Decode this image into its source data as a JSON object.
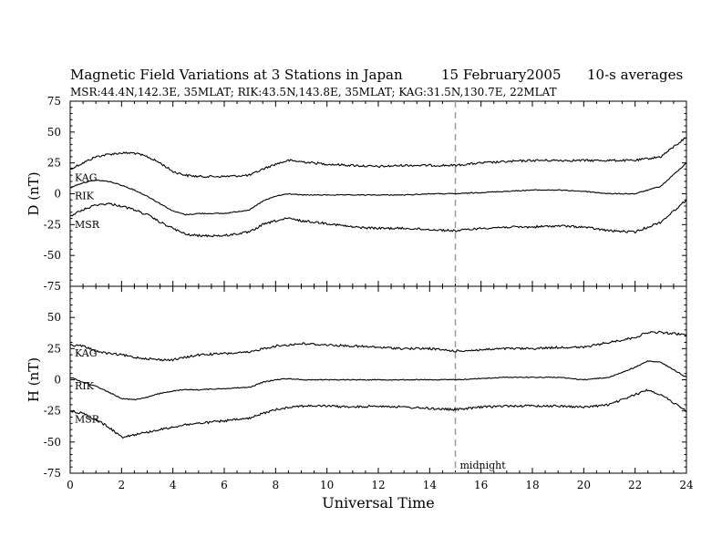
{
  "header": {
    "title": "Magnetic Field Variations at 3 Stations in Japan",
    "date": "15 February2005",
    "averaging": "10-s averages",
    "stations": "MSR:44.4N,142.3E, 35MLAT;   RIK:43.5N,143.8E, 35MLAT;   KAG:31.5N,130.7E, 22MLAT"
  },
  "chart_data": [
    {
      "type": "line",
      "panel": "D",
      "ylabel": "D (nT)",
      "xlabel": "Universal Time",
      "xlim": [
        0,
        24
      ],
      "ylim": [
        -75,
        75
      ],
      "yticks": [
        75,
        50,
        25,
        0,
        -25,
        -50,
        -75
      ],
      "xticks": [
        0,
        2,
        4,
        6,
        8,
        10,
        12,
        14,
        16,
        18,
        20,
        22,
        24
      ],
      "grid": false,
      "annotations": [
        {
          "text": "midnight",
          "x": 15
        }
      ],
      "x": [
        0,
        0.5,
        1,
        1.5,
        2,
        2.5,
        3,
        3.5,
        4,
        4.5,
        5,
        6,
        7,
        7.5,
        8,
        8.5,
        9,
        10,
        11,
        12,
        13,
        14,
        15,
        16,
        17,
        18,
        19,
        20,
        21,
        22,
        23,
        24
      ],
      "series": [
        {
          "name": "KAG",
          "values": [
            20,
            25,
            30,
            32,
            33,
            33,
            30,
            25,
            18,
            15,
            14,
            14,
            15,
            20,
            24,
            27,
            26,
            24,
            23,
            22,
            23,
            23,
            23,
            25,
            26,
            27,
            27,
            27,
            27,
            27,
            30,
            46
          ]
        },
        {
          "name": "RIK",
          "values": [
            5,
            9,
            11,
            10,
            7,
            3,
            -2,
            -8,
            -14,
            -17,
            -16,
            -16,
            -13,
            -6,
            -2,
            0,
            -1,
            -1,
            -1,
            -1,
            -1,
            0,
            0,
            1,
            2,
            3,
            3,
            2,
            0,
            0,
            6,
            25
          ]
        },
        {
          "name": "MSR",
          "values": [
            -18,
            -13,
            -9,
            -8,
            -10,
            -13,
            -17,
            -23,
            -28,
            -33,
            -34,
            -34,
            -31,
            -25,
            -22,
            -20,
            -22,
            -24,
            -27,
            -28,
            -28,
            -29,
            -30,
            -28,
            -27,
            -27,
            -26,
            -27,
            -30,
            -31,
            -23,
            -5
          ]
        }
      ]
    },
    {
      "type": "line",
      "panel": "H",
      "ylabel": "H (nT)",
      "xlabel": "Universal Time",
      "xlim": [
        0,
        24
      ],
      "ylim": [
        -75,
        75
      ],
      "yticks": [
        75,
        50,
        25,
        0,
        -25,
        -50,
        -75
      ],
      "xticks": [
        0,
        2,
        4,
        6,
        8,
        10,
        12,
        14,
        16,
        18,
        20,
        22,
        24
      ],
      "grid": false,
      "annotations": [
        {
          "text": "midnight",
          "x": 15
        }
      ],
      "x": [
        0,
        0.5,
        1,
        1.5,
        2,
        2.5,
        3,
        3.5,
        4,
        4.5,
        5,
        6,
        7,
        7.5,
        8,
        8.5,
        9,
        10,
        11,
        12,
        13,
        14,
        15,
        16,
        17,
        18,
        19,
        20,
        21,
        22,
        22.5,
        23,
        24
      ],
      "series": [
        {
          "name": "KAG",
          "values": [
            28,
            27,
            23,
            21,
            20,
            18,
            17,
            16,
            16,
            18,
            20,
            21,
            22,
            25,
            27,
            28,
            29,
            28,
            27,
            26,
            25,
            25,
            23,
            24,
            25,
            25,
            26,
            26,
            30,
            34,
            38,
            38,
            36
          ]
        },
        {
          "name": "RIK",
          "values": [
            2,
            -2,
            -5,
            -10,
            -15,
            -16,
            -14,
            -11,
            -9,
            -8,
            -8,
            -7,
            -6,
            -2,
            0,
            1,
            0,
            0,
            0,
            0,
            0,
            0,
            0,
            1,
            2,
            2,
            2,
            0,
            2,
            10,
            15,
            14,
            2
          ]
        },
        {
          "name": "MSR",
          "values": [
            -25,
            -27,
            -32,
            -38,
            -46,
            -44,
            -42,
            -40,
            -38,
            -36,
            -35,
            -33,
            -31,
            -27,
            -24,
            -22,
            -21,
            -21,
            -22,
            -21,
            -22,
            -23,
            -24,
            -22,
            -21,
            -21,
            -21,
            -22,
            -20,
            -12,
            -8,
            -12,
            -25
          ]
        }
      ]
    }
  ]
}
